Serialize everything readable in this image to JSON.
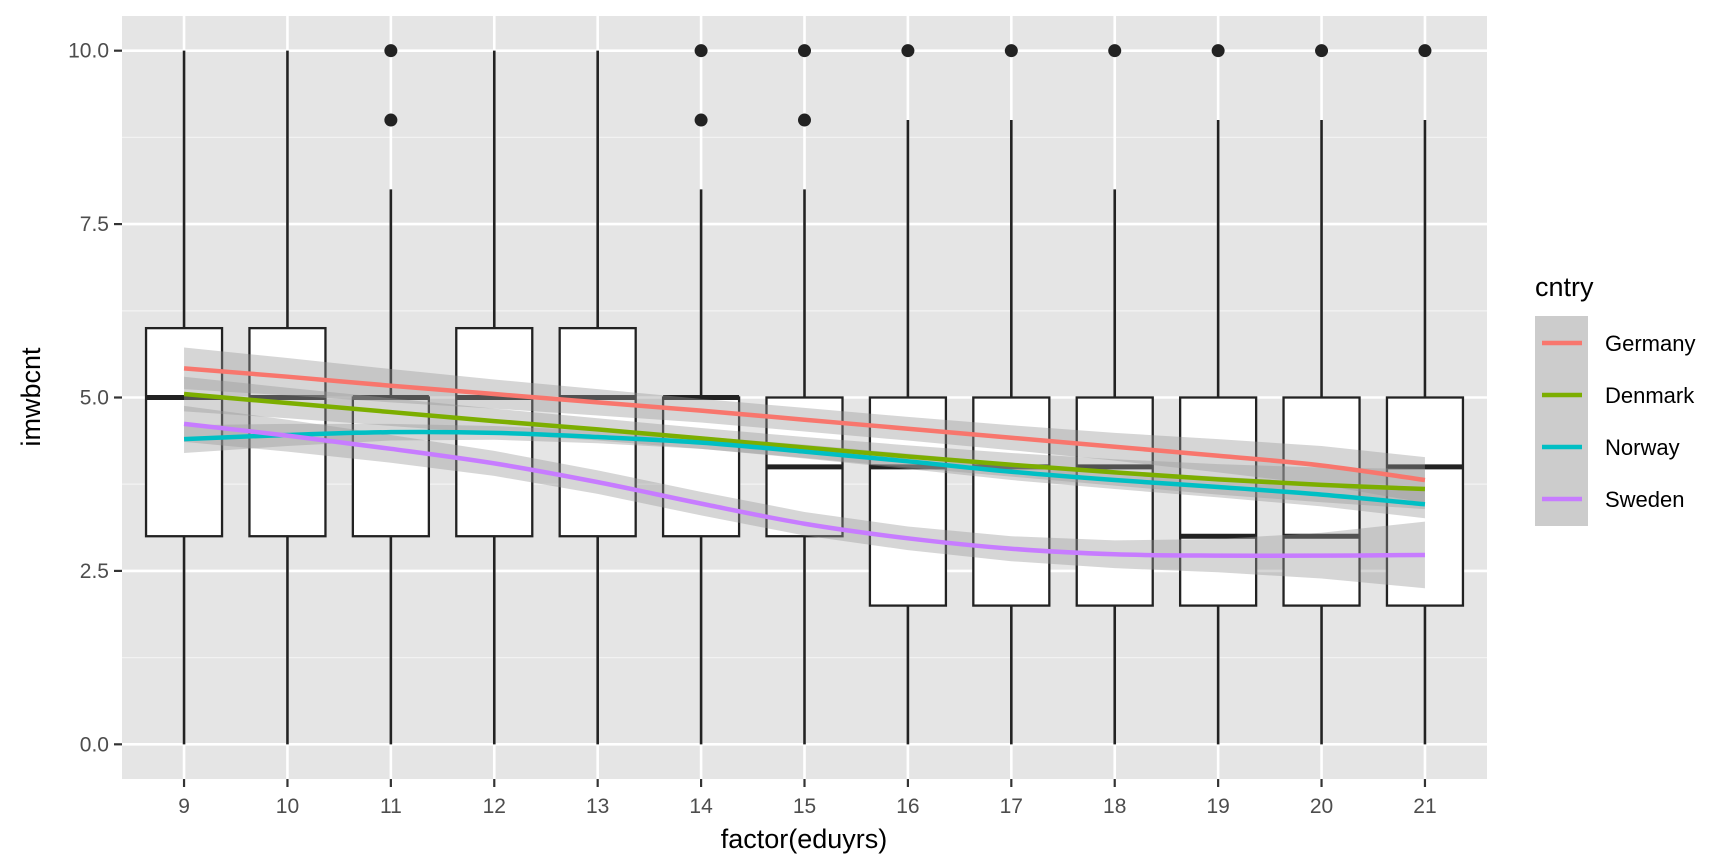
{
  "chart_data": {
    "type": "box",
    "xlabel": "factor(eduyrs)",
    "ylabel": "imwbcnt",
    "ylim": [
      -0.5,
      10.5
    ],
    "y_ticks": [
      "0.0",
      "2.5",
      "5.0",
      "7.5",
      "10.0"
    ],
    "y_tick_values": [
      0,
      2.5,
      5,
      7.5,
      10
    ],
    "categories": [
      "9",
      "10",
      "11",
      "12",
      "13",
      "14",
      "15",
      "16",
      "17",
      "18",
      "19",
      "20",
      "21"
    ],
    "boxes": [
      {
        "x": "9",
        "lower_whisker": 0,
        "q1": 3,
        "median": 5,
        "q3": 6,
        "upper_whisker": 10,
        "outliers": []
      },
      {
        "x": "10",
        "lower_whisker": 0,
        "q1": 3,
        "median": 5,
        "q3": 6,
        "upper_whisker": 10,
        "outliers": []
      },
      {
        "x": "11",
        "lower_whisker": 0,
        "q1": 3,
        "median": 5,
        "q3": 5,
        "upper_whisker": 8,
        "outliers": [
          9,
          10
        ]
      },
      {
        "x": "12",
        "lower_whisker": 0,
        "q1": 3,
        "median": 5,
        "q3": 6,
        "upper_whisker": 10,
        "outliers": []
      },
      {
        "x": "13",
        "lower_whisker": 0,
        "q1": 3,
        "median": 5,
        "q3": 6,
        "upper_whisker": 10,
        "outliers": []
      },
      {
        "x": "14",
        "lower_whisker": 0,
        "q1": 3,
        "median": 5,
        "q3": 5,
        "upper_whisker": 8,
        "outliers": [
          9,
          10
        ]
      },
      {
        "x": "15",
        "lower_whisker": 0,
        "q1": 3,
        "median": 4,
        "q3": 5,
        "upper_whisker": 8,
        "outliers": [
          9,
          10
        ]
      },
      {
        "x": "16",
        "lower_whisker": 0,
        "q1": 2,
        "median": 4,
        "q3": 5,
        "upper_whisker": 9,
        "outliers": [
          10
        ]
      },
      {
        "x": "17",
        "lower_whisker": 0,
        "q1": 2,
        "median": 4,
        "q3": 5,
        "upper_whisker": 9,
        "outliers": [
          10
        ]
      },
      {
        "x": "18",
        "lower_whisker": 0,
        "q1": 2,
        "median": 4,
        "q3": 5,
        "upper_whisker": 8,
        "outliers": [
          10
        ]
      },
      {
        "x": "19",
        "lower_whisker": 0,
        "q1": 2,
        "median": 3,
        "q3": 5,
        "upper_whisker": 9,
        "outliers": [
          10
        ]
      },
      {
        "x": "20",
        "lower_whisker": 0,
        "q1": 2,
        "median": 3,
        "q3": 5,
        "upper_whisker": 9,
        "outliers": [
          10
        ]
      },
      {
        "x": "21",
        "lower_whisker": 0,
        "q1": 2,
        "median": 4,
        "q3": 5,
        "upper_whisker": 9,
        "outliers": [
          10
        ]
      }
    ],
    "smooth_x_range": [
      "9",
      "21"
    ],
    "series": [
      {
        "name": "Germany",
        "color": "#f8766d",
        "values": [
          5.42,
          5.3,
          5.17,
          5.05,
          4.93,
          4.81,
          4.68,
          4.55,
          4.42,
          4.29,
          4.16,
          4.02,
          3.81
        ],
        "band_halfwidth": [
          0.3,
          0.27,
          0.24,
          0.21,
          0.19,
          0.17,
          0.17,
          0.17,
          0.18,
          0.2,
          0.24,
          0.28,
          0.33
        ]
      },
      {
        "name": "Denmark",
        "color": "#7cae00",
        "values": [
          5.05,
          4.92,
          4.79,
          4.66,
          4.54,
          4.41,
          4.28,
          4.15,
          4.03,
          3.92,
          3.82,
          3.74,
          3.68
        ],
        "band_halfwidth": [
          0.25,
          0.22,
          0.2,
          0.18,
          0.16,
          0.15,
          0.15,
          0.16,
          0.17,
          0.19,
          0.22,
          0.25,
          0.29
        ]
      },
      {
        "name": "Norway",
        "color": "#00bfc4",
        "values": [
          4.4,
          4.46,
          4.5,
          4.49,
          4.43,
          4.35,
          4.22,
          4.08,
          3.93,
          3.81,
          3.71,
          3.6,
          3.46
        ],
        "band_halfwidth": [
          0.2,
          0.16,
          0.12,
          0.1,
          0.09,
          0.09,
          0.1,
          0.11,
          0.12,
          0.13,
          0.15,
          0.17,
          0.2
        ]
      },
      {
        "name": "Sweden",
        "color": "#c77cff",
        "values": [
          4.62,
          4.45,
          4.26,
          4.05,
          3.78,
          3.47,
          3.18,
          2.97,
          2.82,
          2.74,
          2.72,
          2.72,
          2.73
        ],
        "band_halfwidth": [
          0.26,
          0.23,
          0.2,
          0.18,
          0.17,
          0.17,
          0.17,
          0.17,
          0.18,
          0.2,
          0.24,
          0.33,
          0.48
        ]
      }
    ],
    "grid": true,
    "legend": {
      "title": "cntry",
      "placement": "right"
    }
  },
  "colors": {
    "panel_background": "#e5e5e5",
    "grid_major": "#ffffff",
    "grid_minor": "#f2f2f2",
    "box_stroke": "#222222",
    "band_fill": "#999999"
  }
}
